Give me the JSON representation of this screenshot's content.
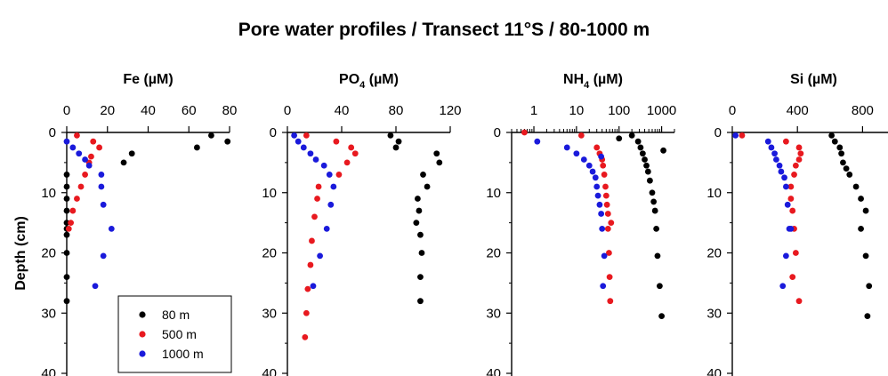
{
  "figure": {
    "title": "Pore water profiles / Transect 11°S / 80-1000 m",
    "ylabel": "Depth (cm)"
  },
  "colors": {
    "80 m": "#000000",
    "500 m": "#e8191f",
    "1000 m": "#1a1adb"
  },
  "legend": [
    "80 m",
    "500 m",
    "1000 m"
  ],
  "chart_data": [
    {
      "type": "scatter",
      "title": "Fe (µM)",
      "title_main": "Fe",
      "title_sub": "",
      "title_unit": " (µM)",
      "x_scale": "linear",
      "xlim": [
        0,
        80
      ],
      "xticks": [
        0,
        20,
        40,
        60,
        80
      ],
      "xtick_labels": [
        "0",
        "20",
        "40",
        "60",
        "80"
      ],
      "ylim": [
        0,
        40
      ],
      "yticks": [
        0,
        10,
        20,
        30,
        40
      ],
      "ytick_labels": [
        "0",
        "10",
        "20",
        "30",
        "40"
      ],
      "y_inverted": true,
      "series": [
        {
          "name": "80 m",
          "x": [
            79,
            71,
            64,
            32,
            28,
            0,
            0,
            0,
            0,
            0,
            0,
            0,
            0,
            0,
            0
          ],
          "y": [
            1.5,
            0.5,
            2.5,
            3.5,
            5,
            9,
            11,
            13,
            15,
            16,
            17,
            20,
            24,
            28,
            7
          ]
        },
        {
          "name": "500 m",
          "x": [
            5,
            13,
            16,
            12,
            11,
            9,
            7,
            5,
            3,
            2,
            1
          ],
          "y": [
            0.5,
            1.5,
            2.5,
            4,
            5,
            7,
            9,
            11,
            13,
            15,
            16
          ]
        },
        {
          "name": "1000 m",
          "x": [
            0,
            3,
            6,
            9,
            11,
            17,
            17,
            18,
            22,
            18,
            14
          ],
          "y": [
            1.5,
            2.5,
            3.5,
            4.5,
            5.5,
            7,
            9,
            12,
            16,
            20.5,
            25.5
          ]
        }
      ]
    },
    {
      "type": "scatter",
      "title": "PO4 (µM)",
      "title_main": "PO",
      "title_sub": "4",
      "title_unit": " (µM)",
      "x_scale": "linear",
      "xlim": [
        0,
        120
      ],
      "xticks": [
        0,
        40,
        80,
        120
      ],
      "xtick_labels": [
        "0",
        "40",
        "80",
        "120"
      ],
      "ylim": [
        0,
        40
      ],
      "yticks": [
        0,
        10,
        20,
        30,
        40
      ],
      "ytick_labels": [
        "0",
        "10",
        "20",
        "30",
        "40"
      ],
      "y_inverted": true,
      "series": [
        {
          "name": "80 m",
          "x": [
            76,
            82,
            80,
            110,
            112,
            100,
            103,
            96,
            97,
            95,
            98,
            99,
            98,
            98
          ],
          "y": [
            0.5,
            1.5,
            2.5,
            3.5,
            5,
            7,
            9,
            11,
            13,
            15,
            17,
            20,
            24,
            28
          ]
        },
        {
          "name": "500 m",
          "x": [
            14,
            36,
            47,
            50,
            44,
            38,
            23,
            22,
            20,
            18,
            17,
            15,
            14,
            13
          ],
          "y": [
            0.5,
            1.5,
            2.5,
            3.5,
            5,
            7,
            9,
            11,
            14,
            18,
            22,
            26,
            30,
            34
          ]
        },
        {
          "name": "1000 m",
          "x": [
            5,
            8,
            12,
            17,
            21,
            27,
            31,
            34,
            32,
            29,
            24,
            19
          ],
          "y": [
            0.5,
            1.5,
            2.5,
            3.5,
            4.5,
            5.5,
            7,
            9,
            12,
            16,
            20.5,
            25.5
          ]
        }
      ]
    },
    {
      "type": "scatter",
      "title": "NH4 (µM)",
      "title_main": "NH",
      "title_sub": "4",
      "title_unit": " (µM)",
      "x_scale": "log",
      "xlim": [
        0.3,
        2000
      ],
      "xticks": [
        1,
        10,
        100,
        1000
      ],
      "xtick_labels": [
        "1",
        "10",
        "100",
        "1000"
      ],
      "ylim": [
        0,
        40
      ],
      "yticks": [
        0,
        10,
        20,
        30,
        40
      ],
      "ytick_labels": [
        "0",
        "10",
        "20",
        "30",
        "40"
      ],
      "y_inverted": true,
      "series": [
        {
          "name": "80 m",
          "x": [
            100,
            200,
            280,
            320,
            360,
            400,
            440,
            480,
            530,
            600,
            650,
            700,
            750,
            800,
            900,
            1000,
            1100
          ],
          "y": [
            1,
            0.5,
            1.5,
            2.5,
            3.5,
            4.5,
            5.5,
            6.5,
            8,
            10,
            11.5,
            13,
            16,
            20.5,
            25.5,
            30.5,
            3
          ]
        },
        {
          "name": "500 m",
          "x": [
            0.6,
            13,
            30,
            35,
            40,
            42,
            45,
            48,
            50,
            52,
            55,
            55,
            58,
            60,
            62,
            65
          ],
          "y": [
            0,
            0.5,
            2.5,
            3.5,
            4.5,
            5.5,
            7,
            9,
            10.5,
            12,
            13.5,
            16,
            20,
            24,
            28,
            15
          ]
        },
        {
          "name": "1000 m",
          "x": [
            1.2,
            6,
            10,
            15,
            20,
            24,
            28,
            30,
            32,
            35,
            38,
            40,
            45,
            42,
            38
          ],
          "y": [
            1.5,
            2.5,
            3.5,
            4.5,
            5.5,
            6.5,
            7.5,
            9,
            10.5,
            12,
            13.5,
            16,
            20.5,
            25.5,
            4
          ]
        }
      ]
    },
    {
      "type": "scatter",
      "title": "Si (µM)",
      "title_main": "Si",
      "title_sub": "",
      "title_unit": " (µM)",
      "x_scale": "linear",
      "xlim": [
        0,
        1000
      ],
      "xticks": [
        0,
        400,
        800
      ],
      "xtick_labels": [
        "0",
        "400",
        "800"
      ],
      "ylim": [
        0,
        40
      ],
      "yticks": [
        0,
        10,
        20,
        30,
        40
      ],
      "ytick_labels": [
        "0",
        "10",
        "20",
        "30",
        "40"
      ],
      "y_inverted": true,
      "series": [
        {
          "name": "80 m",
          "x": [
            610,
            630,
            660,
            670,
            680,
            700,
            720,
            760,
            790,
            820,
            790,
            820,
            840,
            830
          ],
          "y": [
            0.5,
            1.5,
            2.5,
            3.5,
            5,
            6,
            7,
            9,
            11,
            13,
            16,
            20.5,
            25.5,
            30.5
          ]
        },
        {
          "name": "500 m",
          "x": [
            60,
            330,
            410,
            420,
            410,
            390,
            380,
            360,
            360,
            370,
            380,
            390,
            370,
            410
          ],
          "y": [
            0.5,
            1.5,
            2.5,
            3.5,
            4.5,
            5.5,
            7,
            9,
            11,
            13,
            16,
            20,
            24,
            28
          ]
        },
        {
          "name": "1000 m",
          "x": [
            20,
            220,
            240,
            260,
            270,
            290,
            300,
            320,
            330,
            340,
            350,
            360,
            330,
            310
          ],
          "y": [
            0.5,
            1.5,
            2.5,
            3.5,
            4.5,
            5.5,
            6.5,
            7.5,
            9,
            12,
            16,
            16,
            20.5,
            25.5
          ]
        }
      ]
    }
  ]
}
